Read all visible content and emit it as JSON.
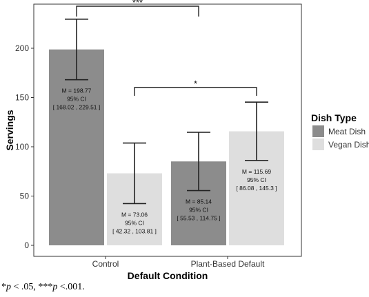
{
  "chart_data": {
    "type": "bar",
    "xlabel": "Default Condition",
    "ylabel": "Servings",
    "ylim": [
      0,
      245
    ],
    "yticks": [
      0,
      50,
      100,
      150,
      200
    ],
    "grid": false,
    "legend": {
      "title": "Dish Type",
      "placement": "right"
    },
    "categories": [
      "Control",
      "Plant-Based Default"
    ],
    "series": [
      {
        "name": "Meat Dish",
        "color": "#8c8c8c",
        "values": [
          198.77,
          85.14
        ],
        "ci_low": [
          168.02,
          55.53
        ],
        "ci_high": [
          229.51,
          114.75
        ],
        "label_lines": [
          [
            "M = 198.77",
            "95% CI",
            "[ 168.02 , 229.51 ]"
          ],
          [
            "M = 85.14",
            "95% CI",
            "[ 55.53 , 114.75 ]"
          ]
        ]
      },
      {
        "name": "Vegan Dish",
        "color": "#dedede",
        "values": [
          73.06,
          115.69
        ],
        "ci_low": [
          42.32,
          86.08
        ],
        "ci_high": [
          103.81,
          145.3
        ],
        "label_lines": [
          [
            "M = 73.06",
            "95% CI",
            "[ 42.32 , 103.81 ]"
          ],
          [
            "M = 115.69",
            "95% CI",
            "[ 86.08 , 145.3 ]"
          ]
        ]
      }
    ],
    "significance": [
      {
        "label": "***",
        "from": "Control / Meat Dish",
        "to": "Plant-Based Default / Meat Dish"
      },
      {
        "label": "*",
        "from": "Control / Vegan Dish",
        "to": "Plant-Based Default / Vegan Dish"
      }
    ]
  },
  "footnote": {
    "p1": "p",
    "t1": " < .05, ***",
    "p2": "p",
    "t2": " <.001."
  }
}
